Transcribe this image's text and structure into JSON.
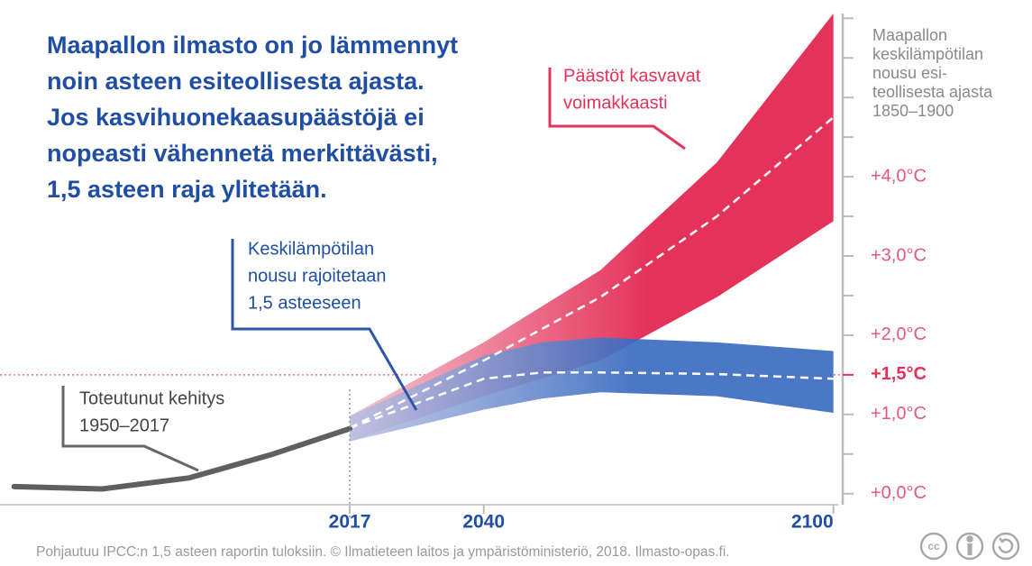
{
  "chart_data": {
    "type": "band",
    "title": [
      "Maapallon ilmasto on jo lämmennyt",
      "noin asteen esiteollisesta ajasta.",
      "Jos kasvihuonekaasupäästöjä ei",
      "nopeasti vähennetä merkittävästi,",
      "1,5 asteen raja ylitetään."
    ],
    "y_axis_label": [
      "Maapallon",
      "keskilämpötilan",
      "nousu esi-",
      "teollisesta ajasta",
      "1850–1900"
    ],
    "xlim": [
      1959.3,
      2101.6
    ],
    "ylim": [
      -0.31,
      6.06
    ],
    "xticks": [
      2017,
      2040,
      2100
    ],
    "yticks": [
      {
        "value": 0,
        "label": "+0,0°C"
      },
      {
        "value": 1,
        "label": "+1,0°C"
      },
      {
        "value": 1.5,
        "label": "+1,5°C"
      },
      {
        "value": 2,
        "label": "+2,0°C"
      },
      {
        "value": 3,
        "label": "+3,0°C"
      },
      {
        "value": 4,
        "label": "+4,0°C"
      }
    ],
    "yticks_minor": [
      0.5,
      2.5,
      3.5,
      4.5,
      5,
      5.5,
      6
    ],
    "reference_line": 1.5,
    "divider_year": 2017,
    "history": {
      "color": "#5f5f5f",
      "x": [
        1959.4,
        1974.5,
        1989.5,
        2003.4,
        2017
      ],
      "values": [
        0.09,
        0.06,
        0.2,
        0.49,
        0.82
      ],
      "annotation": [
        "Toteutunut kehitys",
        "1950–2017"
      ]
    },
    "series": [
      {
        "color": "#e4335b",
        "x": [
          2017,
          2040,
          2060,
          2080,
          2100
        ],
        "lower": [
          0.66,
          1.23,
          1.68,
          2.48,
          3.44
        ],
        "upper": [
          0.98,
          1.91,
          2.82,
          4.18,
          6.06
        ],
        "median": [
          0.83,
          1.68,
          2.48,
          3.5,
          4.75
        ],
        "annotation": [
          "Päästöt kasvavat",
          "voimakkaasti"
        ]
      },
      {
        "color": "#3b6cc0",
        "x": [
          2017,
          2040,
          2050,
          2060,
          2080,
          2100
        ],
        "lower": [
          0.66,
          1.06,
          1.2,
          1.28,
          1.23,
          1.02
        ],
        "upper": [
          0.98,
          1.74,
          1.91,
          1.97,
          1.91,
          1.8
        ],
        "median": [
          0.83,
          1.45,
          1.53,
          1.53,
          1.51,
          1.45
        ],
        "annotation": [
          "Keskilämpötilan",
          "nousu rajoitetaan",
          "1,5 asteeseen"
        ]
      }
    ],
    "source": "Pohjautuu IPCC:n 1,5 asteen raportin tuloksiin. © Ilmatieteen laitos ja ympäristöministeriö, 2018. Ilmasto-opas.fi.",
    "license": "cc"
  }
}
